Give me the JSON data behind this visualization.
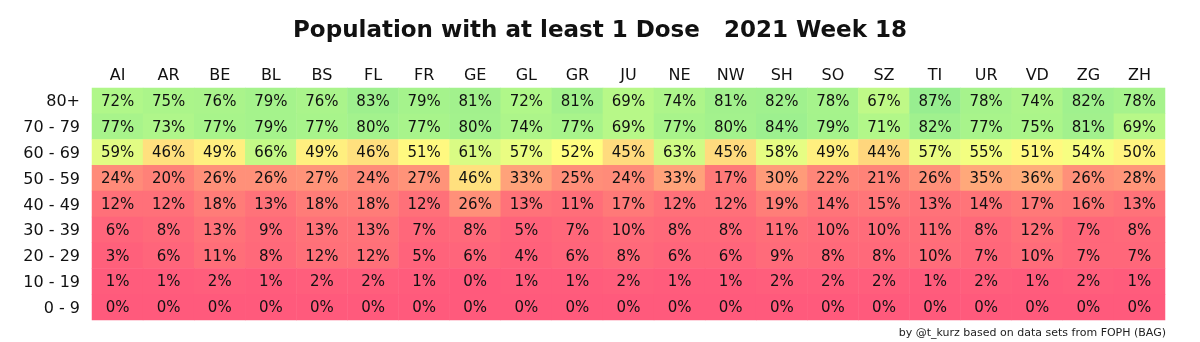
{
  "chart_data": {
    "type": "heatmap",
    "title": "Population with at least 1 Dose   2021 Week 18",
    "categories": [
      "AI",
      "AR",
      "BE",
      "BL",
      "BS",
      "FL",
      "FR",
      "GE",
      "GL",
      "GR",
      "JU",
      "NE",
      "NW",
      "SH",
      "SO",
      "SZ",
      "TI",
      "UR",
      "VD",
      "ZG",
      "ZH"
    ],
    "y_categories": [
      "80+",
      "70 - 79",
      "60 - 69",
      "50 - 59",
      "40 - 49",
      "30 - 39",
      "20 - 29",
      "10 - 19",
      "0 - 9"
    ],
    "cells": [
      [
        72,
        75,
        76,
        79,
        76,
        83,
        79,
        81,
        72,
        81,
        69,
        74,
        81,
        82,
        78,
        67,
        87,
        78,
        74,
        82,
        78
      ],
      [
        77,
        73,
        77,
        79,
        77,
        80,
        77,
        80,
        74,
        77,
        69,
        77,
        80,
        84,
        79,
        71,
        82,
        77,
        75,
        81,
        69
      ],
      [
        59,
        46,
        49,
        66,
        49,
        46,
        51,
        61,
        57,
        52,
        45,
        63,
        45,
        58,
        49,
        44,
        57,
        55,
        51,
        54,
        50
      ],
      [
        24,
        20,
        26,
        26,
        27,
        24,
        27,
        46,
        33,
        25,
        24,
        33,
        17,
        30,
        22,
        21,
        26,
        35,
        36,
        26,
        28
      ],
      [
        12,
        12,
        18,
        13,
        18,
        18,
        12,
        26,
        13,
        11,
        17,
        12,
        12,
        19,
        14,
        15,
        13,
        14,
        17,
        16,
        13
      ],
      [
        6,
        8,
        13,
        9,
        13,
        13,
        7,
        8,
        5,
        7,
        10,
        8,
        8,
        11,
        10,
        10,
        11,
        8,
        12,
        7,
        8
      ],
      [
        3,
        6,
        11,
        8,
        12,
        12,
        5,
        6,
        4,
        6,
        8,
        6,
        6,
        9,
        8,
        8,
        10,
        7,
        10,
        7,
        7
      ],
      [
        1,
        1,
        2,
        1,
        2,
        2,
        1,
        0,
        1,
        1,
        2,
        1,
        1,
        2,
        2,
        2,
        1,
        2,
        1,
        2,
        1
      ],
      [
        0,
        0,
        0,
        0,
        0,
        0,
        0,
        0,
        0,
        0,
        0,
        0,
        0,
        0,
        0,
        0,
        0,
        0,
        0,
        0,
        0
      ]
    ],
    "cell_labels": [
      [
        "72%",
        "75%",
        "76%",
        "79%",
        "76%",
        "83%",
        "79%",
        "81%",
        "72%",
        "81%",
        "69%",
        "74%",
        "81%",
        "82%",
        "78%",
        "67%",
        "87%",
        "78%",
        "74%",
        "82%",
        "78%"
      ],
      [
        "77%",
        "73%",
        "77%",
        "79%",
        "77%",
        "80%",
        "77%",
        "80%",
        "74%",
        "77%",
        "69%",
        "77%",
        "80%",
        "84%",
        "79%",
        "71%",
        "82%",
        "77%",
        "75%",
        "81%",
        "69%"
      ],
      [
        "59%",
        "46%",
        "49%",
        "66%",
        "49%",
        "46%",
        "51%",
        "61%",
        "57%",
        "52%",
        "45%",
        "63%",
        "45%",
        "58%",
        "49%",
        "44%",
        "57%",
        "55%",
        "51%",
        "54%",
        "50%"
      ],
      [
        "24%",
        "20%",
        "26%",
        "26%",
        "27%",
        "24%",
        "27%",
        "46%",
        "33%",
        "25%",
        "24%",
        "33%",
        "17%",
        "30%",
        "22%",
        "21%",
        "26%",
        "35%",
        "36%",
        "26%",
        "28%"
      ],
      [
        "12%",
        "12%",
        "18%",
        "13%",
        "18%",
        "18%",
        "12%",
        "26%",
        "13%",
        "11%",
        "17%",
        "12%",
        "12%",
        "19%",
        "14%",
        "15%",
        "13%",
        "14%",
        "17%",
        "16%",
        "13%"
      ],
      [
        "6%",
        "8%",
        "13%",
        "9%",
        "13%",
        "13%",
        "7%",
        "8%",
        "5%",
        "7%",
        "10%",
        "8%",
        "8%",
        "11%",
        "10%",
        "10%",
        "11%",
        "8%",
        "12%",
        "7%",
        "8%"
      ],
      [
        "3%",
        "6%",
        "11%",
        "8%",
        "12%",
        "12%",
        "5%",
        "6%",
        "4%",
        "6%",
        "8%",
        "6%",
        "6%",
        "9%",
        "8%",
        "8%",
        "10%",
        "7%",
        "10%",
        "7%",
        "7%"
      ],
      [
        "1%",
        "1%",
        "2%",
        "1%",
        "2%",
        "2%",
        "1%",
        "0%",
        "1%",
        "1%",
        "2%",
        "1%",
        "1%",
        "2%",
        "2%",
        "2%",
        "1%",
        "2%",
        "1%",
        "2%",
        "1%"
      ],
      [
        "0%",
        "0%",
        "0%",
        "0%",
        "0%",
        "0%",
        "0%",
        "0%",
        "0%",
        "0%",
        "0%",
        "0%",
        "0%",
        "0%",
        "0%",
        "0%",
        "0%",
        "0%",
        "0%",
        "0%",
        "0%"
      ]
    ],
    "annotations": [
      "by @t_kurz based on data sets from FOPH (BAG)"
    ]
  }
}
